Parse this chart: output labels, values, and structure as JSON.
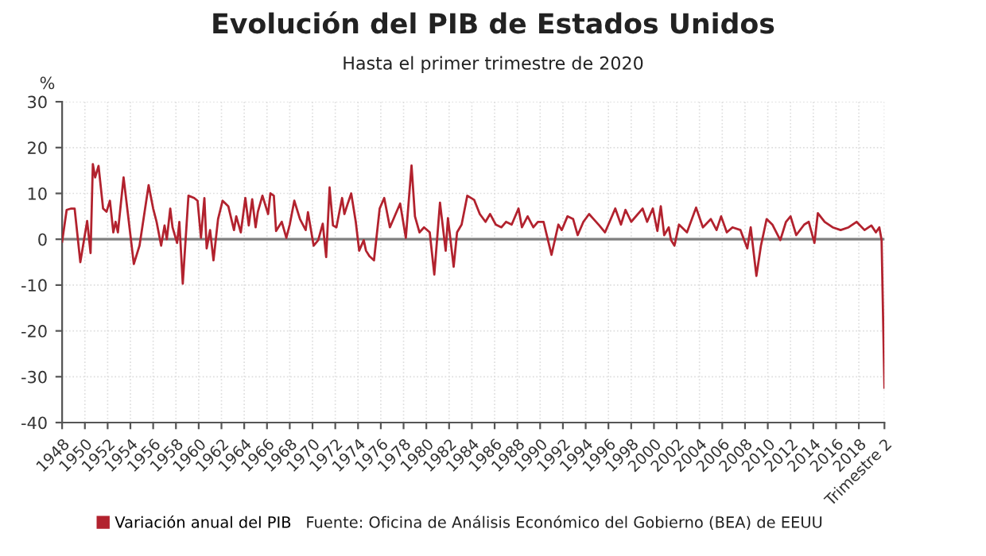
{
  "chart_data": {
    "type": "line",
    "title": "Evolución del PIB de Estados Unidos",
    "subtitle": "Hasta el primer trimestre de 2020",
    "ylabel": "%",
    "annotations": [
      "Fuente: Oficina de Análisis Económico del Gobierno (BEA) de EEUU"
    ],
    "x": [
      1948.0,
      1948.4,
      1948.8,
      1949.1,
      1949.3,
      1949.6,
      1950.0,
      1950.2,
      1950.5,
      1950.7,
      1950.9,
      1951.2,
      1951.6,
      1951.9,
      1952.2,
      1952.5,
      1952.7,
      1952.9,
      1953.4,
      1953.7,
      1954.3,
      1954.8,
      1955.6,
      1956.0,
      1956.3,
      1956.7,
      1957.0,
      1957.2,
      1957.5,
      1957.7,
      1958.1,
      1958.3,
      1958.6,
      1959.1,
      1959.6,
      1959.9,
      1960.2,
      1960.5,
      1960.7,
      1961.0,
      1961.3,
      1961.7,
      1962.1,
      1962.6,
      1963.1,
      1963.3,
      1963.7,
      1964.1,
      1964.4,
      1964.7,
      1965.0,
      1965.2,
      1965.6,
      1966.1,
      1966.3,
      1966.6,
      1966.8,
      1967.3,
      1967.7,
      1968.0,
      1968.4,
      1968.9,
      1969.4,
      1969.6,
      1970.1,
      1970.5,
      1970.9,
      1971.2,
      1971.5,
      1971.8,
      1972.1,
      1972.6,
      1972.8,
      1973.1,
      1973.4,
      1973.8,
      1974.1,
      1974.5,
      1974.7,
      1975.0,
      1975.4,
      1975.9,
      1976.3,
      1976.8,
      1977.3,
      1977.7,
      1978.2,
      1978.7,
      1979.0,
      1979.4,
      1979.8,
      1980.3,
      1980.7,
      1981.2,
      1981.7,
      1981.9,
      1982.4,
      1982.7,
      1983.1,
      1983.6,
      1984.2,
      1984.7,
      1985.2,
      1985.6,
      1986.1,
      1986.6,
      1987.0,
      1987.5,
      1988.1,
      1988.4,
      1988.9,
      1989.4,
      1989.8,
      1990.3,
      1991.0,
      1991.6,
      1991.9,
      1992.4,
      1992.9,
      1993.3,
      1993.8,
      1994.3,
      1994.7,
      1995.2,
      1995.7,
      1996.1,
      1996.6,
      1997.1,
      1997.5,
      1998.0,
      1999.0,
      1999.4,
      1999.9,
      2000.3,
      2000.6,
      2000.9,
      2001.3,
      2001.5,
      2001.8,
      2002.2,
      2002.9,
      2003.7,
      2004.3,
      2005.0,
      2005.5,
      2005.9,
      2006.4,
      2006.9,
      2007.6,
      2008.2,
      2008.5,
      2009.0,
      2009.4,
      2009.9,
      2010.4,
      2011.1,
      2011.6,
      2012.0,
      2012.5,
      2013.2,
      2013.6,
      2014.1,
      2014.4,
      2015.0,
      2015.7,
      2016.4,
      2017.1,
      2017.8,
      2018.5,
      2019.1,
      2019.5,
      2019.8,
      2020.0,
      2020.25
    ],
    "series": [
      {
        "name": "Variación anual del PIB",
        "color": "#b2222e",
        "values": [
          -0.5,
          6.4,
          6.7,
          6.7,
          2,
          -5,
          1,
          4,
          -3,
          16.4,
          13.5,
          16,
          6.7,
          6,
          8.4,
          1.5,
          3.8,
          1.5,
          13.5,
          7.2,
          -5.4,
          -1.4,
          11.8,
          6.7,
          3.8,
          -1.4,
          3,
          0,
          6.7,
          2.6,
          -0.8,
          3.8,
          -9.7,
          9.5,
          9,
          8.4,
          0.3,
          9,
          -2,
          2,
          -4.6,
          4.4,
          8.4,
          7.2,
          2,
          5,
          1.5,
          9,
          3,
          8.7,
          2.6,
          6,
          9.5,
          5.5,
          10,
          9.5,
          1.8,
          3.8,
          0.3,
          3.2,
          8.4,
          4.4,
          2,
          5.9,
          -1.4,
          -0.2,
          3.4,
          -3.9,
          11.3,
          3,
          2.6,
          9,
          5.5,
          7.8,
          10,
          3.8,
          -2.5,
          -0.2,
          -2.5,
          -3.7,
          -4.6,
          6.7,
          9,
          2.6,
          5.5,
          7.8,
          0.3,
          16.1,
          5,
          1.5,
          2.6,
          1.5,
          -7.7,
          8,
          -2.5,
          4.6,
          -6,
          1.5,
          3.2,
          9.5,
          8.6,
          5.5,
          3.8,
          5.5,
          3.2,
          2.6,
          3.8,
          3.2,
          6.7,
          2.6,
          5,
          2.6,
          3.8,
          3.8,
          -3.4,
          3.2,
          2,
          5,
          4.4,
          0.9,
          3.8,
          5.5,
          4.4,
          3,
          1.5,
          3.8,
          6.7,
          3.2,
          6.4,
          3.8,
          6.7,
          3.8,
          6.7,
          1.8,
          7.2,
          0.9,
          2.6,
          -0.2,
          -1.4,
          3.2,
          1.5,
          6.9,
          2.6,
          4.4,
          2,
          5,
          1.5,
          2.6,
          2,
          -2,
          2.6,
          -8,
          -1.4,
          4.4,
          3.2,
          -0.2,
          3.8,
          5,
          0.9,
          3.2,
          3.8,
          -0.8,
          5.7,
          3.8,
          2.6,
          2,
          2.6,
          3.8,
          2,
          3,
          1.5,
          2.6,
          -0.2,
          -32.4
        ]
      }
    ],
    "xlim": [
      1948,
      2020.25
    ],
    "ylim": [
      -40,
      30
    ],
    "xticks": [
      1948,
      1950,
      1952,
      1954,
      1956,
      1958,
      1960,
      1962,
      1964,
      1966,
      1968,
      1970,
      1972,
      1974,
      1976,
      1978,
      1980,
      1982,
      1984,
      1986,
      1988,
      1990,
      1992,
      1994,
      1996,
      1998,
      2000,
      2002,
      2004,
      2006,
      2008,
      2010,
      2012,
      2014,
      2016,
      2018,
      {
        "value": 2020.25,
        "label": "Trimestre 2"
      }
    ],
    "yticks": [
      -40,
      -30,
      -20,
      -10,
      0,
      10,
      20,
      30
    ],
    "ref_lines": [
      {
        "axis": "y",
        "value": 0,
        "color": "#7f7f7f"
      }
    ],
    "grid": true,
    "legend": "bottom",
    "marker": "none",
    "line_style": "solid"
  }
}
